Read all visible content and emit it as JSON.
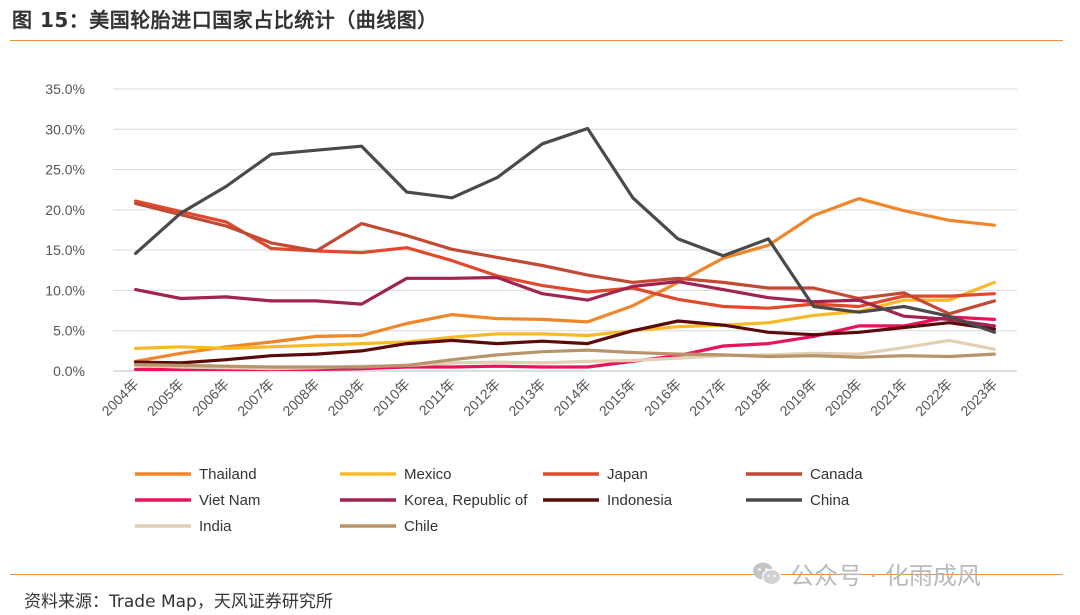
{
  "header": {
    "title": "图 15：美国轮胎进口国家占比统计（曲线图）"
  },
  "footer": {
    "source": "资料来源：Trade Map，天风证券研究所",
    "watermark": "公众号 · 化雨成风",
    "watermark_icon": "wechat-icon"
  },
  "chart_data": {
    "type": "line",
    "title": "",
    "xlabel": "",
    "ylabel": "",
    "ylim": [
      0,
      35
    ],
    "y_ticks": [
      "0.0%",
      "5.0%",
      "10.0%",
      "15.0%",
      "20.0%",
      "25.0%",
      "30.0%",
      "35.0%"
    ],
    "y_unit": "%",
    "grid": "horizontal",
    "legend_position": "bottom",
    "categories": [
      "2004年",
      "2005年",
      "2006年",
      "2007年",
      "2008年",
      "2009年",
      "2010年",
      "2011年",
      "2012年",
      "2013年",
      "2014年",
      "2015年",
      "2016年",
      "2017年",
      "2018年",
      "2019年",
      "2020年",
      "2021年",
      "2022年",
      "2023年"
    ],
    "series": [
      {
        "name": "Thailand",
        "color": "#f0862a",
        "values": [
          1.2,
          2.2,
          3.0,
          3.6,
          4.3,
          4.4,
          5.9,
          7.0,
          6.5,
          6.4,
          6.1,
          8.1,
          11.0,
          14.0,
          15.6,
          19.3,
          21.4,
          19.9,
          18.7,
          18.1
        ]
      },
      {
        "name": "Mexico",
        "color": "#f7b928",
        "values": [
          2.8,
          3.0,
          2.8,
          3.0,
          3.2,
          3.4,
          3.6,
          4.2,
          4.6,
          4.6,
          4.4,
          5.0,
          5.5,
          5.7,
          6.0,
          6.9,
          7.4,
          8.8,
          8.8,
          11.0
        ]
      },
      {
        "name": "Japan",
        "color": "#e0492b",
        "values": [
          21.1,
          19.8,
          18.5,
          15.2,
          14.9,
          14.7,
          15.3,
          13.7,
          11.8,
          10.6,
          9.8,
          10.3,
          8.9,
          8.0,
          7.8,
          8.3,
          8.0,
          9.3,
          9.3,
          9.6
        ]
      },
      {
        "name": "Canada",
        "color": "#c24a35",
        "values": [
          20.8,
          19.4,
          18.0,
          15.9,
          14.9,
          18.3,
          16.8,
          15.1,
          14.1,
          13.1,
          11.9,
          11.0,
          11.5,
          11.0,
          10.3,
          10.3,
          9.0,
          9.7,
          7.1,
          8.7
        ]
      },
      {
        "name": "Viet Nam",
        "color": "#e8135a",
        "values": [
          0.2,
          0.2,
          0.2,
          0.2,
          0.2,
          0.3,
          0.5,
          0.5,
          0.6,
          0.5,
          0.5,
          1.2,
          1.9,
          3.1,
          3.4,
          4.3,
          5.6,
          5.6,
          6.7,
          6.4
        ]
      },
      {
        "name": "Korea, Republic of",
        "color": "#a0244f",
        "values": [
          10.1,
          9.0,
          9.2,
          8.7,
          8.7,
          8.3,
          11.5,
          11.5,
          11.6,
          9.6,
          8.8,
          10.5,
          11.1,
          10.1,
          9.1,
          8.6,
          8.8,
          6.8,
          6.4,
          5.6
        ]
      },
      {
        "name": "Indonesia",
        "color": "#5a0a0a",
        "values": [
          1.1,
          1.0,
          1.4,
          1.9,
          2.1,
          2.5,
          3.4,
          3.8,
          3.4,
          3.7,
          3.4,
          5.0,
          6.2,
          5.7,
          4.8,
          4.5,
          4.8,
          5.4,
          6.0,
          5.2
        ]
      },
      {
        "name": "China",
        "color": "#4a4a4a",
        "values": [
          14.6,
          19.6,
          22.9,
          26.9,
          27.4,
          27.9,
          22.2,
          21.5,
          24.0,
          28.2,
          30.1,
          21.5,
          16.4,
          14.3,
          16.4,
          8.0,
          7.3,
          8.0,
          6.8,
          4.8
        ]
      },
      {
        "name": "India",
        "color": "#e3cfb4",
        "values": [
          0.7,
          0.5,
          0.4,
          0.3,
          0.4,
          0.6,
          0.7,
          1.0,
          1.1,
          1.0,
          1.2,
          1.3,
          1.6,
          1.9,
          2.0,
          2.2,
          2.1,
          2.9,
          3.8,
          2.7
        ]
      },
      {
        "name": "Chile",
        "color": "#b8946a",
        "values": [
          0.8,
          0.7,
          0.6,
          0.5,
          0.5,
          0.5,
          0.7,
          1.4,
          2.0,
          2.4,
          2.6,
          2.3,
          2.1,
          2.0,
          1.8,
          1.9,
          1.7,
          1.9,
          1.8,
          2.1
        ]
      }
    ]
  }
}
